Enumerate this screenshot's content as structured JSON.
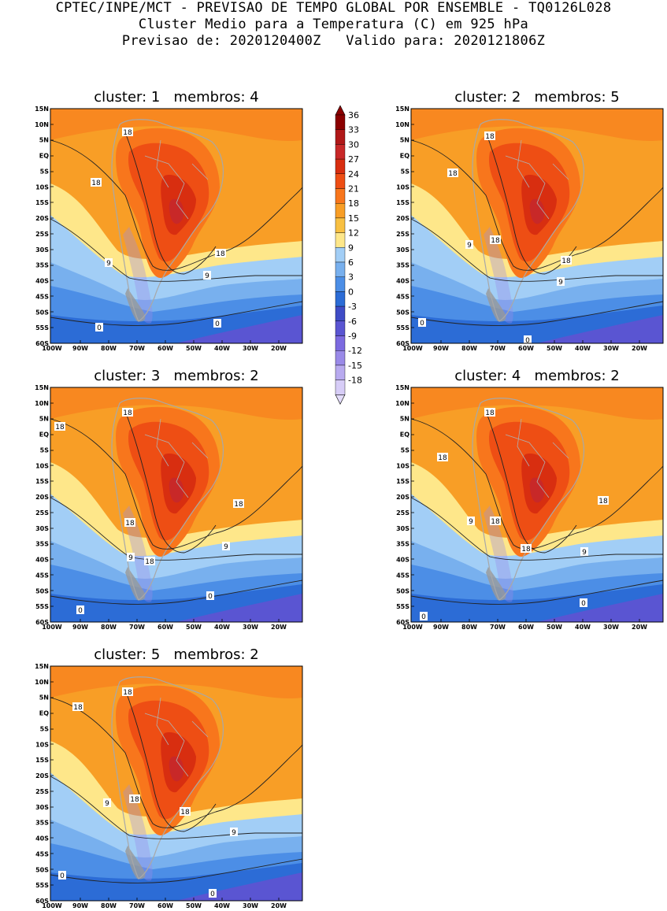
{
  "header": {
    "line1": "CPTEC/INPE/MCT - PREVISAO DE TEMPO GLOBAL POR ENSEMBLE - TQ0126L028",
    "line2": "Cluster Medio para a Temperatura (C) em 925 hPa",
    "line3": "Previsao de: 2020120400Z   Valido para: 2020121806Z"
  },
  "panels": [
    {
      "title": "cluster: 1   membros: 4",
      "contours": [
        "18",
        "18",
        "9",
        "9",
        "18",
        "0",
        "0"
      ]
    },
    {
      "title": "cluster: 2   membros: 5",
      "contours": [
        "18",
        "18",
        "9",
        "18",
        "18",
        "9",
        "0",
        "0"
      ]
    },
    {
      "title": "cluster: 3   membros: 2",
      "contours": [
        "18",
        "18",
        "18",
        "18",
        "9",
        "18",
        "9",
        "0",
        "0"
      ]
    },
    {
      "title": "cluster: 4   membros: 2",
      "contours": [
        "18",
        "18",
        "18",
        "9",
        "18",
        "18",
        "9",
        "0",
        "0"
      ]
    },
    {
      "title": "cluster: 5   membros: 2",
      "contours": [
        "18",
        "18",
        "18",
        "9",
        "18",
        "9",
        "0",
        "0"
      ]
    }
  ],
  "lat_labels": [
    "15N",
    "10N",
    "5N",
    "EQ",
    "5S",
    "10S",
    "15S",
    "20S",
    "25S",
    "30S",
    "35S",
    "40S",
    "45S",
    "50S",
    "55S",
    "60S"
  ],
  "lon_labels": [
    "100W",
    "90W",
    "80W",
    "70W",
    "60W",
    "50W",
    "40W",
    "30W",
    "20W"
  ],
  "colorbar": {
    "labels": [
      "36",
      "33",
      "30",
      "27",
      "24",
      "21",
      "18",
      "15",
      "12",
      "9",
      "6",
      "3",
      "0",
      "-3",
      "-6",
      "-9",
      "-12",
      "-15",
      "-18"
    ],
    "colors": [
      "#8b0000",
      "#b01818",
      "#c82828",
      "#d82e10",
      "#ee4e14",
      "#f8761c",
      "#f89e26",
      "#f8c042",
      "#fee78a",
      "#a2cef6",
      "#78b0ee",
      "#4c8ee6",
      "#2c6cd6",
      "#3f4cc6",
      "#5a55d2",
      "#7c6ae0",
      "#9a8ae8",
      "#b8aaef",
      "#d7cdf7"
    ],
    "bottom_color": "#e3dcfa"
  }
}
